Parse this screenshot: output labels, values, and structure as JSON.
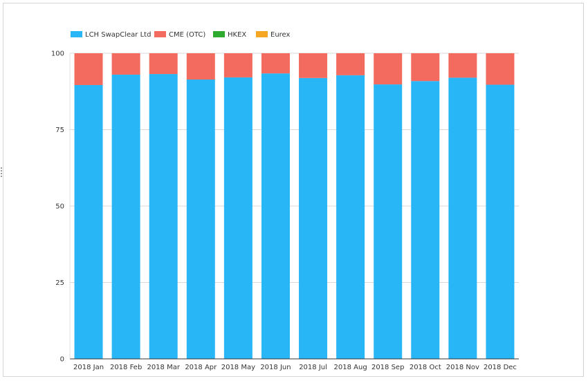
{
  "chart_data": {
    "type": "bar",
    "stacked": true,
    "categories": [
      "2018 Jan",
      "2018 Feb",
      "2018 Mar",
      "2018 Apr",
      "2018 May",
      "2018 Jun",
      "2018 Jul",
      "2018 Aug",
      "2018 Sep",
      "2018 Oct",
      "2018 Nov",
      "2018 Dec"
    ],
    "series": [
      {
        "name": "LCH SwapClear Ltd",
        "color": "#29b6f6",
        "values": [
          89.6,
          93.0,
          93.2,
          91.4,
          92.1,
          93.4,
          91.9,
          92.8,
          89.8,
          90.9,
          92.0,
          89.7
        ]
      },
      {
        "name": "CME (OTC)",
        "color": "#f26b5e",
        "values": [
          10.4,
          7.0,
          6.8,
          8.6,
          7.9,
          6.6,
          8.1,
          7.2,
          10.2,
          9.1,
          8.0,
          10.3
        ]
      },
      {
        "name": "HKEX",
        "color": "#2eaa2e",
        "values": [
          0,
          0,
          0,
          0,
          0,
          0,
          0,
          0,
          0,
          0,
          0,
          0
        ]
      },
      {
        "name": "Eurex",
        "color": "#f5a623",
        "values": [
          0,
          0,
          0,
          0,
          0,
          0,
          0,
          0,
          0,
          0,
          0,
          0
        ]
      }
    ],
    "y_ticks": [
      "0",
      "25",
      "50",
      "75",
      "100"
    ],
    "ylim": [
      0,
      100
    ],
    "grid": true,
    "legend_position": "top-left",
    "title": "",
    "xlabel": "",
    "ylabel": ""
  }
}
